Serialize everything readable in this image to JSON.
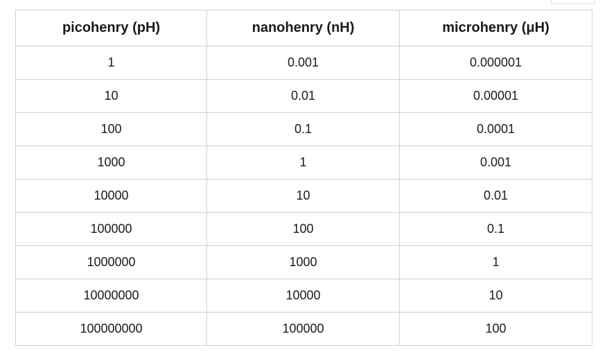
{
  "table": {
    "header": [
      "picohenry (pH)",
      "nanohenry (nH)",
      "microhenry (μH)"
    ],
    "rows": [
      [
        "1",
        "0.001",
        "0.000001"
      ],
      [
        "10",
        "0.01",
        "0.00001"
      ],
      [
        "100",
        "0.1",
        "0.0001"
      ],
      [
        "1000",
        "1",
        "0.001"
      ],
      [
        "10000",
        "10",
        "0.01"
      ],
      [
        "100000",
        "100",
        "0.1"
      ],
      [
        "1000000",
        "1000",
        "1"
      ],
      [
        "10000000",
        "10000",
        "10"
      ],
      [
        "100000000",
        "100000",
        "100"
      ]
    ]
  }
}
